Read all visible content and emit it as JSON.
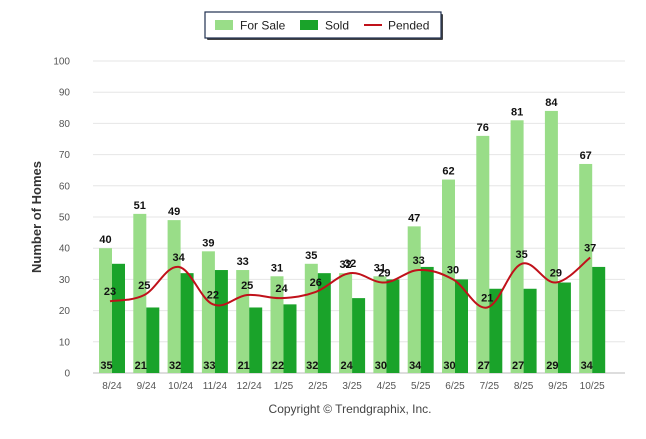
{
  "chart_data": {
    "type": "bar",
    "title": "",
    "xlabel": "",
    "ylabel": "Number of Homes",
    "ylim": [
      0,
      100
    ],
    "yticks": [
      0,
      10,
      20,
      30,
      40,
      50,
      60,
      70,
      80,
      90,
      100
    ],
    "grid": true,
    "legend_position": "top-center",
    "categories": [
      "8/24",
      "9/24",
      "10/24",
      "11/24",
      "12/24",
      "1/25",
      "2/25",
      "3/25",
      "4/25",
      "5/25",
      "6/25",
      "7/25",
      "8/25",
      "9/25",
      "10/25"
    ],
    "series": [
      {
        "name": "For Sale",
        "kind": "bar",
        "color": "#99dd88",
        "values": [
          40,
          51,
          49,
          39,
          33,
          31,
          35,
          32,
          31,
          47,
          62,
          76,
          81,
          84,
          67
        ]
      },
      {
        "name": "Sold",
        "kind": "bar",
        "color": "#1aa32a",
        "values": [
          35,
          21,
          32,
          33,
          21,
          22,
          32,
          24,
          30,
          34,
          30,
          27,
          27,
          29,
          34
        ]
      },
      {
        "name": "Pended",
        "kind": "line",
        "color": "#c0111a",
        "values": [
          23,
          25,
          34,
          22,
          25,
          24,
          26,
          32,
          29,
          33,
          30,
          21,
          35,
          29,
          37
        ]
      }
    ],
    "credit": "Copyright © Trendgraphix, Inc."
  }
}
